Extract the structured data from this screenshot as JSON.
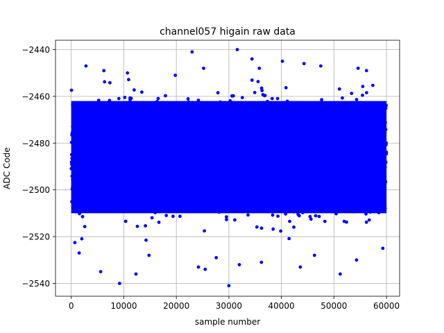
{
  "chart_data": {
    "type": "scatter",
    "title": "channel057 higain raw data",
    "xlabel": "sample number",
    "ylabel": "ADC Code",
    "xlim": [
      -3000,
      62500
    ],
    "ylim": [
      -2545.5,
      -2436
    ],
    "xticks": [
      0,
      10000,
      20000,
      30000,
      40000,
      50000,
      60000
    ],
    "xtick_labels": [
      "0",
      "10000",
      "20000",
      "30000",
      "40000",
      "50000",
      "60000"
    ],
    "yticks": [
      -2540,
      -2520,
      -2500,
      -2480,
      -2460,
      -2440
    ],
    "ytick_labels": [
      "−2540",
      "−2520",
      "−2500",
      "−2480",
      "−2460",
      "−2440"
    ],
    "grid": true,
    "marker_color": "#0000ff",
    "series": [
      {
        "n_points": 60000,
        "x_range": [
          0,
          59999
        ],
        "dense_band": [
          -2516,
          -2456
        ],
        "center": -2486,
        "outliers": [
          {
            "x": 5600,
            "y": -2535
          },
          {
            "x": 9200,
            "y": -2540
          },
          {
            "x": 12300,
            "y": -2536
          },
          {
            "x": 23000,
            "y": -2441
          },
          {
            "x": 24200,
            "y": -2533
          },
          {
            "x": 25500,
            "y": -2534
          },
          {
            "x": 30000,
            "y": -2541
          },
          {
            "x": 31600,
            "y": -2440
          },
          {
            "x": 32000,
            "y": -2532
          },
          {
            "x": 34400,
            "y": -2444
          },
          {
            "x": 40200,
            "y": -2445
          },
          {
            "x": 43600,
            "y": -2533
          },
          {
            "x": 44300,
            "y": -2446
          },
          {
            "x": 51200,
            "y": -2536
          },
          {
            "x": 2800,
            "y": -2447
          },
          {
            "x": 6200,
            "y": -2449
          },
          {
            "x": 10700,
            "y": -2450
          },
          {
            "x": 19800,
            "y": -2451
          },
          {
            "x": 25200,
            "y": -2448
          },
          {
            "x": 35800,
            "y": -2448
          },
          {
            "x": 47500,
            "y": -2447
          },
          {
            "x": 54600,
            "y": -2448
          },
          {
            "x": 56200,
            "y": -2449
          },
          {
            "x": 1500,
            "y": -2527
          },
          {
            "x": 14800,
            "y": -2528
          },
          {
            "x": 27600,
            "y": -2529
          },
          {
            "x": 36200,
            "y": -2531
          },
          {
            "x": 46300,
            "y": -2528
          },
          {
            "x": 54300,
            "y": -2530
          },
          {
            "x": 59300,
            "y": -2525
          }
        ]
      }
    ]
  }
}
